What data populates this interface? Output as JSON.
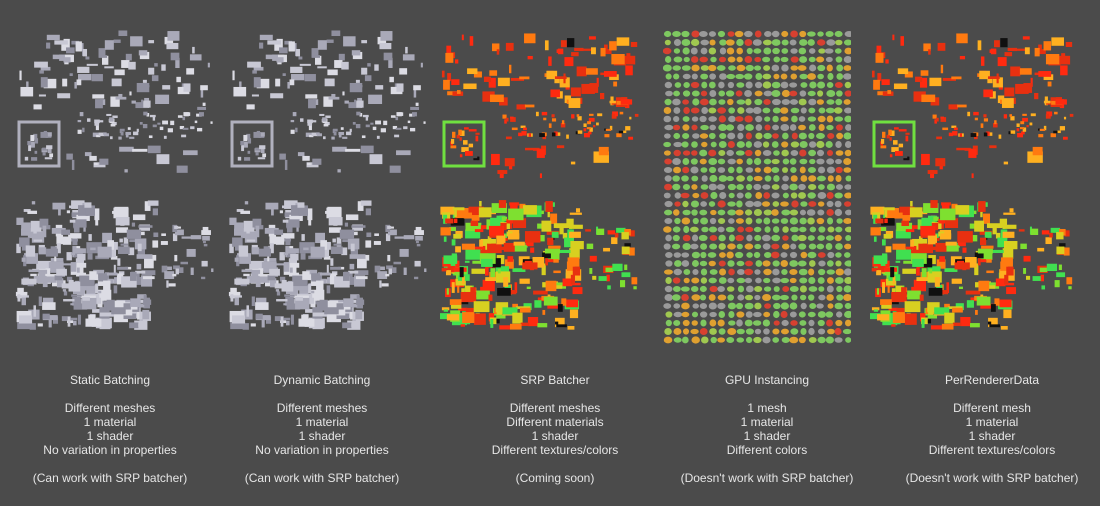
{
  "columns": [
    {
      "title": "Static Batching",
      "lines": [
        "Different meshes",
        "1 material",
        "1 shader",
        "No variation in properties"
      ],
      "note": "(Can work with SRP batcher)",
      "style": "gray"
    },
    {
      "title": "Dynamic Batching",
      "lines": [
        "Different meshes",
        "1 material",
        "1 shader",
        "No variation in properties"
      ],
      "note": "(Can work with SRP batcher)",
      "style": "gray"
    },
    {
      "title": "SRP Batcher",
      "lines": [
        "Different meshes",
        "Different materials",
        "1 shader",
        "Different textures/colors"
      ],
      "note": "(Coming soon)",
      "style": "heat"
    },
    {
      "title": "GPU Instancing",
      "lines": [
        "1 mesh",
        "1 material",
        "1 shader",
        "Different colors"
      ],
      "note": "(Doesn't work with SRP batcher)",
      "style": "instanced"
    },
    {
      "title": "PerRendererData",
      "lines": [
        "Different mesh",
        "1 material",
        "1 shader",
        "Different textures/colors"
      ],
      "note": "(Doesn't work with SRP batcher)",
      "style": "heat"
    }
  ],
  "colors": {
    "background": "#4b4b4b",
    "gray": [
      "#c8c8d4",
      "#a9a9b8",
      "#dcdce4",
      "#8f8f9e"
    ],
    "heat": [
      "#ff2a10",
      "#e83010",
      "#ff7a10",
      "#ffb020",
      "#d8d020",
      "#7ee030",
      "#40e050",
      "#101010"
    ],
    "instanced": [
      "#7ec860",
      "#9a9a9a",
      "#e0a030",
      "#d84030",
      "#a0c850"
    ]
  }
}
